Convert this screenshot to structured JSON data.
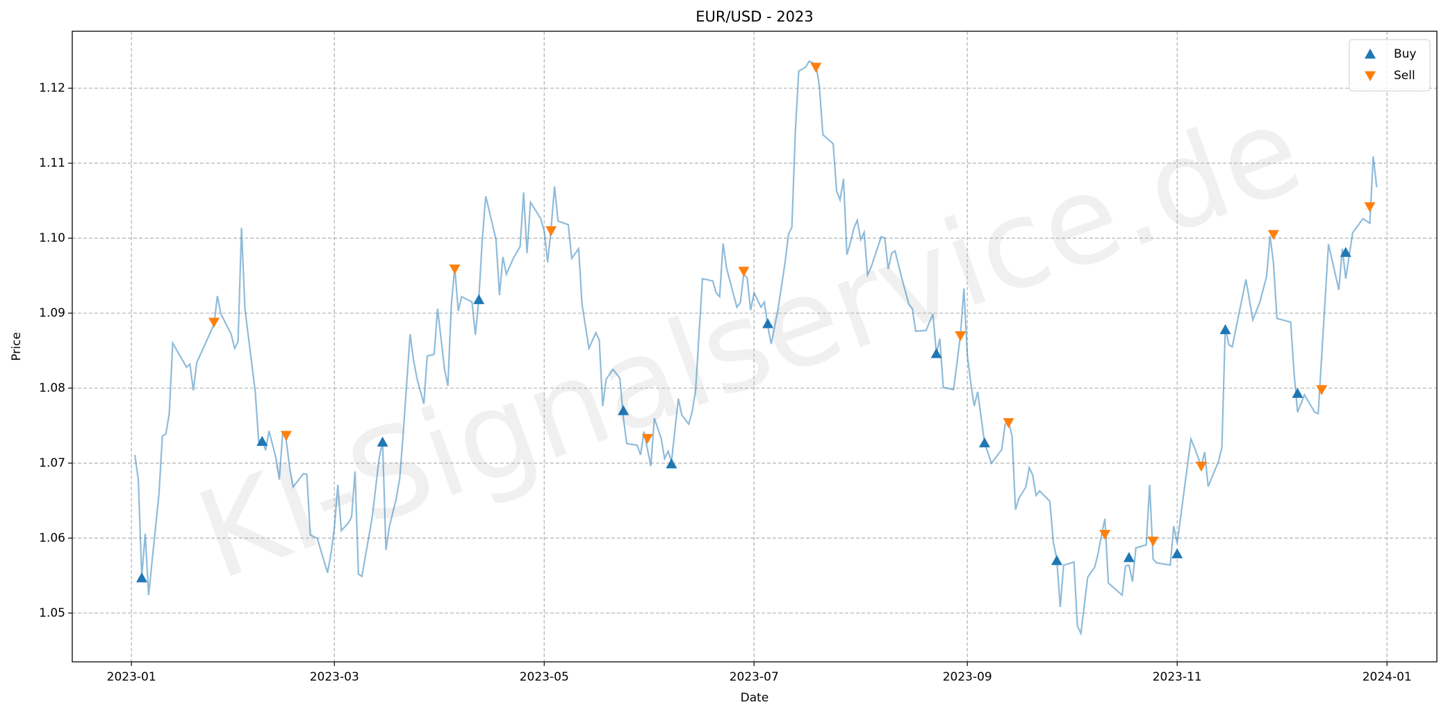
{
  "chart_data": {
    "type": "line",
    "title": "EUR/USD - 2023",
    "x_label": "Date",
    "y_label": "Price",
    "watermark": "KI-Signalservice.de",
    "grid": true,
    "legend": "upper right",
    "xlim": [
      -17.2,
      379.5
    ],
    "ylim": [
      1.0435,
      1.1276
    ],
    "xticks": [
      {
        "value": 0,
        "label": "2023-01"
      },
      {
        "value": 59,
        "label": "2023-03"
      },
      {
        "value": 120,
        "label": "2023-05"
      },
      {
        "value": 181,
        "label": "2023-07"
      },
      {
        "value": 243,
        "label": "2023-09"
      },
      {
        "value": 304,
        "label": "2023-11"
      },
      {
        "value": 365,
        "label": "2024-01"
      }
    ],
    "yticks": [
      1.05,
      1.06,
      1.07,
      1.08,
      1.09,
      {
        "value": 1.1,
        "label": "1.10"
      },
      1.11,
      1.12
    ],
    "series": [
      {
        "color": "#1f77b4",
        "opacity": 0.5,
        "x": [
          1,
          2,
          3,
          4,
          5,
          8,
          9,
          10,
          11,
          12,
          16,
          17,
          18,
          19,
          24,
          25,
          26,
          29,
          30,
          31,
          32,
          33,
          36,
          37,
          38,
          39,
          40,
          42,
          43,
          44,
          45,
          46,
          47,
          50,
          51,
          52,
          54,
          57,
          58,
          59,
          60,
          61,
          63,
          64,
          65,
          66,
          67,
          70,
          72,
          73,
          74,
          75,
          77,
          78,
          79,
          81,
          82,
          83,
          85,
          86,
          88,
          89,
          91,
          92,
          93,
          94,
          95,
          96,
          99,
          100,
          101,
          102,
          103,
          106,
          107,
          108,
          109,
          111,
          113,
          114,
          115,
          116,
          119,
          120,
          121,
          122,
          123,
          124,
          127,
          128,
          130,
          131,
          133,
          135,
          136,
          137,
          138,
          140,
          142,
          143,
          144,
          147,
          148,
          149,
          151,
          152,
          154,
          155,
          156,
          157,
          159,
          160,
          162,
          163,
          164,
          166,
          169,
          170,
          171,
          172,
          173,
          176,
          177,
          178,
          179,
          180,
          181,
          183,
          184,
          185,
          186,
          188,
          190,
          191,
          192,
          193,
          194,
          196,
          197,
          199,
          200,
          201,
          204,
          205,
          206,
          207,
          208,
          209,
          210,
          211,
          212,
          213,
          214,
          215,
          218,
          219,
          220,
          221,
          222,
          224,
          226,
          227,
          228,
          231,
          233,
          234,
          235,
          236,
          239,
          240,
          241,
          242,
          243,
          244,
          245,
          246,
          248,
          250,
          253,
          254,
          255,
          256,
          257,
          258,
          260,
          261,
          262,
          263,
          264,
          267,
          268,
          269,
          270,
          271,
          274,
          275,
          276,
          278,
          280,
          281,
          282,
          283,
          284,
          288,
          289,
          290,
          291,
          292,
          295,
          296,
          297,
          298,
          302,
          303,
          304,
          308,
          309,
          311,
          312,
          313,
          316,
          317,
          318,
          319,
          320,
          324,
          326,
          328,
          330,
          331,
          332,
          333,
          337,
          338,
          339,
          341,
          344,
          345,
          348,
          351,
          352,
          353,
          355,
          358,
          360,
          361,
          362
        ],
        "values": [
          1.0711,
          1.0678,
          1.0548,
          1.0606,
          1.0524,
          1.0659,
          1.0736,
          1.0739,
          1.0766,
          1.086,
          1.0828,
          1.0832,
          1.0797,
          1.0834,
          1.0885,
          1.0923,
          1.0899,
          1.0872,
          1.0853,
          1.0862,
          1.1014,
          1.0906,
          1.0795,
          1.0729,
          1.0733,
          1.0717,
          1.0743,
          1.0707,
          1.0678,
          1.0742,
          1.0731,
          1.0694,
          1.0668,
          1.0686,
          1.0685,
          1.0604,
          1.06,
          1.0554,
          1.0579,
          1.0614,
          1.0671,
          1.061,
          1.062,
          1.0628,
          1.0689,
          1.0552,
          1.0549,
          1.0628,
          1.0706,
          1.0729,
          1.0584,
          1.0616,
          1.0653,
          1.068,
          1.0739,
          1.0872,
          1.0838,
          1.0813,
          1.0779,
          1.0843,
          1.0845,
          1.0906,
          1.0826,
          1.0803,
          1.0912,
          1.0961,
          1.0903,
          1.0922,
          1.0915,
          1.0871,
          1.092,
          1.0998,
          1.1056,
          1.0998,
          1.0924,
          1.0975,
          1.0952,
          1.0973,
          1.0989,
          1.1061,
          1.098,
          1.1048,
          1.1026,
          1.1009,
          1.0968,
          1.1014,
          1.1069,
          1.1023,
          1.1018,
          1.0973,
          1.0986,
          1.0912,
          1.0853,
          1.0874,
          1.0864,
          1.0776,
          1.0812,
          1.0825,
          1.0813,
          1.0761,
          1.0726,
          1.0724,
          1.0711,
          1.0742,
          1.0696,
          1.076,
          1.0733,
          1.0706,
          1.0716,
          1.0702,
          1.0786,
          1.0764,
          1.0752,
          1.0768,
          1.0797,
          1.0946,
          1.0943,
          1.0927,
          1.0922,
          1.0993,
          1.096,
          1.0908,
          1.0914,
          1.0952,
          1.0947,
          1.0904,
          1.0927,
          1.0908,
          1.0915,
          1.0882,
          1.0859,
          1.0906,
          1.0967,
          1.1005,
          1.1015,
          1.1143,
          1.1223,
          1.1228,
          1.1236,
          1.1232,
          1.1202,
          1.1138,
          1.1126,
          1.1063,
          1.1051,
          1.1079,
          1.0978,
          1.0994,
          1.1013,
          1.1024,
          1.0998,
          1.1008,
          1.0951,
          1.0961,
          1.1002,
          1.1,
          1.0959,
          1.098,
          1.0983,
          1.0946,
          1.0912,
          1.0906,
          1.0876,
          1.0877,
          1.0899,
          1.0846,
          1.0866,
          1.0801,
          1.0798,
          1.0834,
          1.0871,
          1.0933,
          1.0844,
          1.0807,
          1.0776,
          1.0795,
          1.0727,
          1.07,
          1.0718,
          1.0752,
          1.0755,
          1.0736,
          1.0638,
          1.0653,
          1.0668,
          1.0694,
          1.0684,
          1.0657,
          1.0663,
          1.0649,
          1.0594,
          1.0573,
          1.0508,
          1.0564,
          1.0568,
          1.0483,
          1.0473,
          1.0548,
          1.0561,
          1.0579,
          1.0604,
          1.0626,
          1.054,
          1.0524,
          1.0563,
          1.0564,
          1.0542,
          1.0587,
          1.0591,
          1.0671,
          1.0572,
          1.0567,
          1.0564,
          1.0616,
          1.0593,
          1.0732,
          1.0721,
          1.0696,
          1.0715,
          1.0669,
          1.0702,
          1.0721,
          1.0882,
          1.0858,
          1.0855,
          1.0945,
          1.0891,
          1.0914,
          1.0949,
          1.1003,
          1.0967,
          1.0893,
          1.0888,
          1.0819,
          1.0768,
          1.0791,
          1.0768,
          1.0766,
          1.0992,
          1.0931,
          1.0986,
          1.0946,
          1.1007,
          1.1026,
          1.102,
          1.1109,
          1.1068
        ]
      },
      {
        "name": "Buy",
        "color": "#1f77b4",
        "marker": "triangle-up",
        "x": [
          3,
          38,
          73,
          101,
          143,
          157,
          185,
          234,
          248,
          269,
          290,
          304,
          318,
          339,
          353
        ],
        "values": [
          1.0547,
          1.0729,
          1.0728,
          1.0918,
          1.077,
          1.0699,
          1.0886,
          1.0846,
          1.0727,
          1.057,
          1.0574,
          1.0579,
          1.0878,
          1.0793,
          1.0981
        ]
      },
      {
        "name": "Sell",
        "color": "#ff7f0e",
        "marker": "triangle-down",
        "x": [
          24,
          45,
          94,
          122,
          150,
          178,
          199,
          241,
          255,
          283,
          297,
          311,
          332,
          346,
          360
        ],
        "values": [
          1.0888,
          1.0737,
          1.0959,
          1.101,
          1.0733,
          1.0956,
          1.1228,
          1.087,
          1.0754,
          1.0605,
          1.0596,
          1.0696,
          1.1005,
          1.0798,
          1.1042
        ]
      }
    ]
  }
}
